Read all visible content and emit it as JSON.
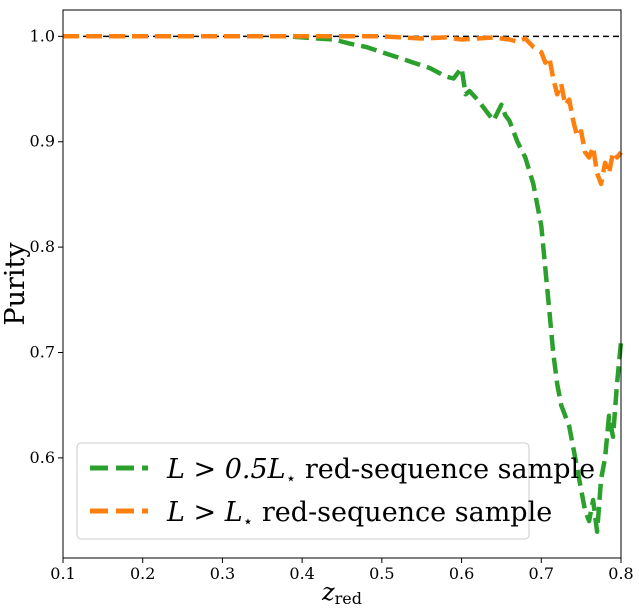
{
  "chart_data": {
    "type": "line",
    "xlabel_main": "z",
    "xlabel_sub": "red",
    "ylabel": "Purity",
    "xlim": [
      0.1,
      0.8
    ],
    "ylim": [
      0.505,
      1.025
    ],
    "xticks": [
      "0.1",
      "0.2",
      "0.3",
      "0.4",
      "0.5",
      "0.6",
      "0.7",
      "0.8"
    ],
    "yticks": [
      "0.6",
      "0.7",
      "0.8",
      "0.9",
      "1.0"
    ],
    "reference_line": {
      "y": 1.0,
      "color": "#000000",
      "style": "dashed"
    },
    "legend_placement": "lower-left",
    "series": [
      {
        "name": "L > 0.5L⋆ red-sequence sample",
        "legend_math": "L > 0.5L",
        "legend_star": "⋆",
        "legend_rest": " red-sequence sample",
        "color": "#2ca02c",
        "x": [
          0.1,
          0.2,
          0.3,
          0.35,
          0.38,
          0.4,
          0.42,
          0.44,
          0.46,
          0.48,
          0.5,
          0.52,
          0.54,
          0.56,
          0.58,
          0.59,
          0.6,
          0.605,
          0.61,
          0.62,
          0.63,
          0.64,
          0.65,
          0.655,
          0.66,
          0.67,
          0.68,
          0.69,
          0.7,
          0.705,
          0.71,
          0.715,
          0.72,
          0.725,
          0.73,
          0.735,
          0.74,
          0.745,
          0.75,
          0.755,
          0.76,
          0.765,
          0.77,
          0.775,
          0.78,
          0.785,
          0.79,
          0.795,
          0.8
        ],
        "y": [
          1.0,
          1.0,
          1.0,
          1.0,
          1.0,
          0.999,
          0.998,
          0.997,
          0.993,
          0.99,
          0.985,
          0.98,
          0.975,
          0.97,
          0.962,
          0.96,
          0.97,
          0.945,
          0.948,
          0.94,
          0.93,
          0.92,
          0.935,
          0.925,
          0.92,
          0.9,
          0.885,
          0.86,
          0.82,
          0.78,
          0.74,
          0.7,
          0.67,
          0.65,
          0.64,
          0.63,
          0.61,
          0.59,
          0.57,
          0.55,
          0.54,
          0.56,
          0.53,
          0.58,
          0.6,
          0.64,
          0.62,
          0.67,
          0.71
        ]
      },
      {
        "name": "L > L⋆ red-sequence sample",
        "legend_math": "L > L",
        "legend_star": "⋆",
        "legend_rest": " red-sequence sample",
        "color": "#ff7f0e",
        "x": [
          0.1,
          0.2,
          0.3,
          0.4,
          0.5,
          0.55,
          0.58,
          0.6,
          0.62,
          0.64,
          0.66,
          0.67,
          0.68,
          0.69,
          0.7,
          0.705,
          0.71,
          0.715,
          0.72,
          0.725,
          0.73,
          0.735,
          0.74,
          0.745,
          0.75,
          0.755,
          0.76,
          0.765,
          0.77,
          0.775,
          0.78,
          0.785,
          0.79,
          0.795,
          0.8
        ],
        "y": [
          1.0,
          1.0,
          1.0,
          1.0,
          1.0,
          0.998,
          0.999,
          0.997,
          0.998,
          0.999,
          0.997,
          0.995,
          0.998,
          0.99,
          0.985,
          0.975,
          0.98,
          0.96,
          0.945,
          0.955,
          0.935,
          0.94,
          0.92,
          0.905,
          0.91,
          0.89,
          0.885,
          0.895,
          0.87,
          0.86,
          0.88,
          0.87,
          0.89,
          0.885,
          0.89
        ]
      }
    ]
  }
}
